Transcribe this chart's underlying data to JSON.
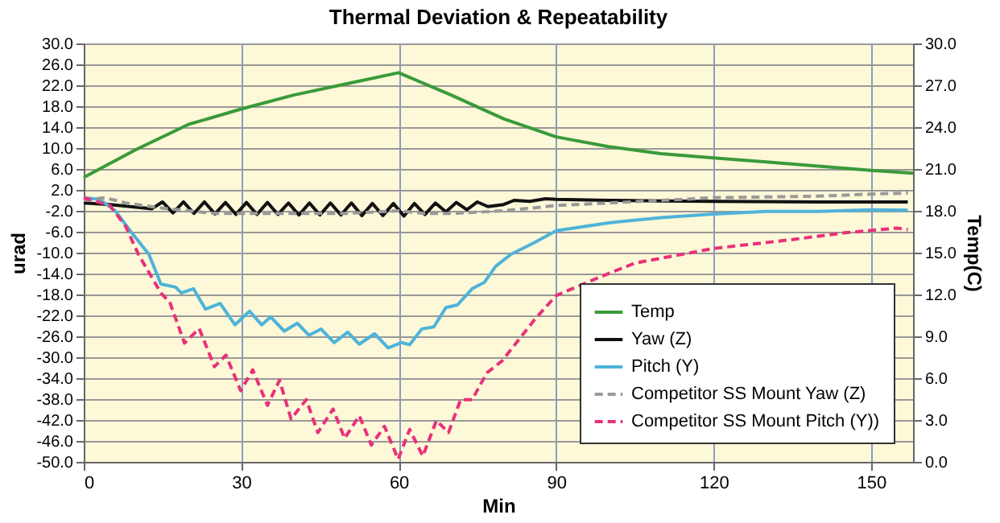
{
  "chart_data": {
    "type": "line",
    "title": "Thermal Deviation & Repeatability",
    "xlabel": "Min",
    "ylabel": "urad",
    "y2label": "Temp(C)",
    "xlim": [
      0,
      158
    ],
    "xticks": [
      0,
      30,
      60,
      90,
      120,
      150
    ],
    "ylim": [
      -50,
      30
    ],
    "yticks": [
      {
        "value": -50,
        "label": "-50.0"
      },
      {
        "value": -46,
        "label": "-46.0"
      },
      {
        "value": -42,
        "label": "-42.0"
      },
      {
        "value": -38,
        "label": "-38.0"
      },
      {
        "value": -34,
        "label": "-34.0"
      },
      {
        "value": -30,
        "label": "-30.0"
      },
      {
        "value": -26,
        "label": "-26.0"
      },
      {
        "value": -22,
        "label": "-22.0"
      },
      {
        "value": -18,
        "label": "-18.0"
      },
      {
        "value": -14,
        "label": "-14.0"
      },
      {
        "value": -10,
        "label": "-10.0"
      },
      {
        "value": -6,
        "label": "-6.0"
      },
      {
        "value": -2,
        "label": "-2.0"
      },
      {
        "value": 2,
        "label": "2.0"
      },
      {
        "value": 6,
        "label": "6.0"
      },
      {
        "value": 10,
        "label": "10.0"
      },
      {
        "value": 14,
        "label": "14.0"
      },
      {
        "value": 18,
        "label": "18.0"
      },
      {
        "value": 22,
        "label": "22.0"
      },
      {
        "value": 26,
        "label": "26.0"
      },
      {
        "value": 30,
        "label": "30.0"
      }
    ],
    "y2lim": [
      0,
      30
    ],
    "y2ticks": [
      {
        "value": 0,
        "label": "0.0"
      },
      {
        "value": 3,
        "label": "3.0"
      },
      {
        "value": 6,
        "label": "6.0"
      },
      {
        "value": 9,
        "label": "9.0"
      },
      {
        "value": 12,
        "label": "12.0"
      },
      {
        "value": 15,
        "label": "15.0"
      },
      {
        "value": 18,
        "label": "18.0"
      },
      {
        "value": 21,
        "label": "21.0"
      },
      {
        "value": 24,
        "label": "24.0"
      },
      {
        "value": 27,
        "label": "27.0"
      },
      {
        "value": 30,
        "label": "30.0"
      }
    ],
    "grid": true,
    "legend": "bottom right",
    "marker": "none",
    "series": [
      {
        "name": "Temp",
        "color": "#3a9a3a",
        "axis": "y2",
        "line_style": "solid",
        "x": [
          0,
          10,
          20,
          30,
          40,
          50,
          60,
          70,
          80,
          90,
          100,
          110,
          120,
          130,
          140,
          150,
          158
        ],
        "values": [
          20.4,
          22.4,
          24.2,
          25.3,
          26.3,
          27.1,
          27.9,
          26.3,
          24.6,
          23.3,
          22.6,
          22.1,
          21.8,
          21.5,
          21.2,
          20.9,
          20.7
        ]
      },
      {
        "name": "Yaw (Z)",
        "color": "#111111",
        "line_style": "solid",
        "x": [
          0,
          5,
          10,
          13,
          15,
          17,
          19,
          21,
          23,
          25,
          27,
          29,
          31,
          33,
          35,
          37,
          39,
          41,
          43,
          45,
          47,
          49,
          51,
          53,
          55,
          57,
          59,
          61,
          63,
          65,
          67,
          69,
          71,
          73,
          75,
          77,
          80,
          82,
          85,
          88,
          90,
          100,
          110,
          120,
          140,
          157
        ],
        "values": [
          -0.5,
          -0.8,
          -1.3,
          -1.6,
          -0.3,
          -2.4,
          -0.3,
          -2.5,
          -0.3,
          -2.6,
          -0.4,
          -2.7,
          -0.4,
          -2.7,
          -0.4,
          -2.7,
          -0.5,
          -2.8,
          -0.5,
          -2.8,
          -0.5,
          -2.8,
          -0.5,
          -2.9,
          -0.6,
          -2.9,
          -0.6,
          -3.0,
          -0.6,
          -2.7,
          -0.5,
          -2.2,
          -0.4,
          -1.8,
          -0.3,
          -1.2,
          -0.8,
          0,
          -0.2,
          0.3,
          0.2,
          0,
          -0.1,
          -0.2,
          -0.3,
          -0.3
        ]
      },
      {
        "name": "Pitch (Y)",
        "color": "#4fb3d9",
        "line_style": "solid",
        "x": [
          0,
          3,
          6,
          9,
          12.4,
          14.7,
          17.5,
          18.6,
          20.9,
          23.2,
          26,
          28.8,
          31.6,
          33.9,
          35.6,
          38.2,
          40.7,
          42.9,
          45.2,
          47.7,
          50.3,
          52.5,
          55.4,
          58,
          60.5,
          62.1,
          64.4,
          66.7,
          69,
          71.2,
          74,
          76.3,
          78.5,
          81.4,
          86,
          90,
          100,
          110,
          120,
          130,
          140,
          150,
          157
        ],
        "values": [
          0.5,
          0.2,
          -2,
          -6,
          -10.3,
          -16,
          -16.6,
          -17.7,
          -16.9,
          -20.8,
          -19.7,
          -23.8,
          -21.2,
          -23.8,
          -22.3,
          -25,
          -23.5,
          -25.8,
          -24.6,
          -27.2,
          -25.2,
          -27.5,
          -25.5,
          -28.2,
          -27.2,
          -27.6,
          -24.6,
          -24.2,
          -20.5,
          -20,
          -16.9,
          -15.7,
          -12.6,
          -10.3,
          -8,
          -5.8,
          -4.3,
          -3.3,
          -2.6,
          -2.1,
          -2.1,
          -1.8,
          -1.9
        ]
      },
      {
        "name": "Competitor SS Mount Yaw (Z)",
        "color": "#999999",
        "line_style": "dashed",
        "x": [
          0,
          4,
          8,
          15,
          25,
          35,
          50,
          60,
          65,
          70,
          80,
          85,
          90,
          100,
          120,
          140,
          150,
          157
        ],
        "values": [
          0,
          0.5,
          -0.5,
          -1.5,
          -2.5,
          -2.5,
          -2.5,
          -2,
          -2.5,
          -2.5,
          -2,
          -1.5,
          -1,
          -0.5,
          0.5,
          0.8,
          1.2,
          1.4
        ]
      },
      {
        "name": "Competitor SS Mount Pitch (Y))",
        "color": "#e8317a",
        "line_style": "dashed",
        "x": [
          0,
          5,
          8,
          10.4,
          14.7,
          16.4,
          19.2,
          22,
          24.9,
          27.1,
          29.9,
          32.2,
          35,
          37.3,
          39.5,
          42.4,
          44.6,
          47.5,
          49.7,
          52.5,
          54.8,
          57.3,
          59.9,
          62.1,
          64.6,
          67.2,
          69.5,
          71.8,
          74,
          76.8,
          79.7,
          85.9,
          90,
          98,
          105,
          120,
          135,
          145,
          155,
          157
        ],
        "values": [
          0.5,
          -1,
          -5,
          -10.3,
          -17.7,
          -19.5,
          -27.3,
          -24.5,
          -31.8,
          -29.6,
          -36.4,
          -32.4,
          -39.2,
          -34.4,
          -41.8,
          -38.1,
          -44.4,
          -39.9,
          -45.5,
          -41.2,
          -46.8,
          -43.2,
          -49.5,
          -43.8,
          -48.9,
          -42.1,
          -44.4,
          -38.1,
          -38.1,
          -33,
          -30.7,
          -22.8,
          -18.2,
          -14.8,
          -12,
          -9.2,
          -7.5,
          -6.2,
          -5.3,
          -5.6
        ]
      }
    ]
  }
}
